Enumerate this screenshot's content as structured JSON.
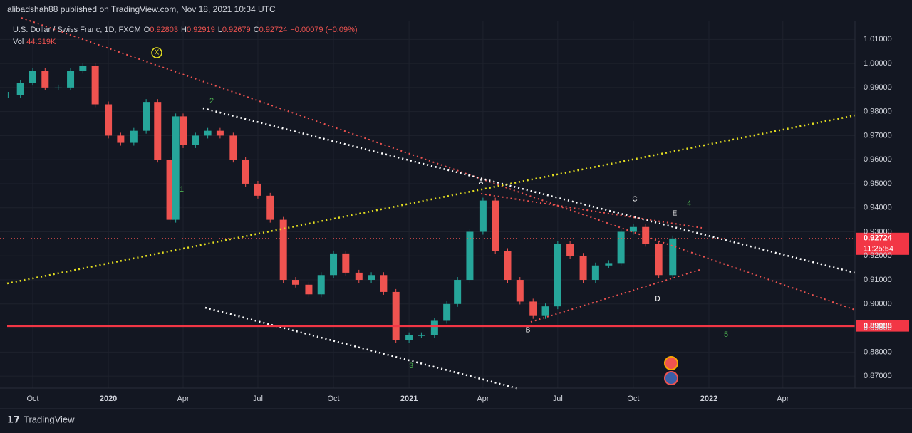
{
  "header": {
    "publisher": "alibadshah88 published on TradingView.com, Nov 18, 2021 10:34 UTC"
  },
  "legend": {
    "symbol": "U.S. Dollar / Swiss Franc, 1D, FXCM",
    "o_key": "O",
    "o": "0.92803",
    "h_key": "H",
    "h": "0.92919",
    "l_key": "L",
    "l": "0.92679",
    "c_key": "C",
    "c": "0.92724",
    "change": "−0.00079 (−0.09%)",
    "vol_key": "Vol",
    "vol": "44.319K"
  },
  "chart_data": {
    "type": "candlestick",
    "x": [
      "2019-09-01",
      "2019-09-16",
      "2019-10-01",
      "2019-10-16",
      "2019-11-01",
      "2019-11-16",
      "2019-12-01",
      "2019-12-16",
      "2020-01-01",
      "2020-01-16",
      "2020-02-01",
      "2020-02-16",
      "2020-03-01",
      "2020-03-16",
      "2020-03-23",
      "2020-04-01",
      "2020-04-16",
      "2020-05-01",
      "2020-05-16",
      "2020-06-01",
      "2020-06-16",
      "2020-07-01",
      "2020-07-16",
      "2020-08-01",
      "2020-08-16",
      "2020-09-01",
      "2020-09-16",
      "2020-10-01",
      "2020-10-16",
      "2020-11-01",
      "2020-11-16",
      "2020-12-01",
      "2020-12-16",
      "2021-01-01",
      "2021-01-16",
      "2021-02-01",
      "2021-02-16",
      "2021-03-01",
      "2021-03-16",
      "2021-04-01",
      "2021-04-16",
      "2021-05-01",
      "2021-05-16",
      "2021-06-01",
      "2021-06-16",
      "2021-07-01",
      "2021-07-16",
      "2021-08-01",
      "2021-08-16",
      "2021-09-01",
      "2021-09-16",
      "2021-10-01",
      "2021-10-16",
      "2021-11-01",
      "2021-11-18"
    ],
    "series": [
      {
        "name": "USDCHF",
        "values": [
          0.987,
          0.992,
          0.997,
          0.99,
          0.99,
          0.997,
          0.999,
          0.983,
          0.97,
          0.967,
          0.972,
          0.984,
          0.96,
          0.935,
          0.978,
          0.966,
          0.97,
          0.972,
          0.97,
          0.96,
          0.95,
          0.945,
          0.935,
          0.91,
          0.908,
          0.904,
          0.912,
          0.921,
          0.913,
          0.91,
          0.912,
          0.905,
          0.885,
          0.887,
          0.887,
          0.893,
          0.9,
          0.91,
          0.93,
          0.943,
          0.922,
          0.91,
          0.901,
          0.895,
          0.899,
          0.925,
          0.92,
          0.91,
          0.916,
          0.917,
          0.93,
          0.932,
          0.925,
          0.912,
          0.92724
        ]
      }
    ],
    "up_color": "#26a69a",
    "down_color": "#ef5350",
    "ylim": [
      0.865,
      1.0175
    ],
    "yticks": [
      {
        "value": 1.01,
        "label": "1.01000"
      },
      {
        "value": 1.0,
        "label": "1.00000"
      },
      {
        "value": 0.99,
        "label": "0.99000"
      },
      {
        "value": 0.98,
        "label": "0.98000"
      },
      {
        "value": 0.97,
        "label": "0.97000"
      },
      {
        "value": 0.96,
        "label": "0.96000"
      },
      {
        "value": 0.95,
        "label": "0.95000"
      },
      {
        "value": 0.94,
        "label": "0.94000"
      },
      {
        "value": 0.93,
        "label": "0.93000"
      },
      {
        "value": 0.92,
        "label": "0.92000"
      },
      {
        "value": 0.91,
        "label": "0.91000"
      },
      {
        "value": 0.9,
        "label": "0.90000"
      },
      {
        "value": 0.89,
        "label": "0.89000"
      },
      {
        "value": 0.88,
        "label": "0.88000"
      },
      {
        "value": 0.87,
        "label": "0.87000"
      }
    ],
    "xticks": [
      {
        "value": "2019-10-01",
        "label": "Oct"
      },
      {
        "value": "2020-01-01",
        "label": "2020"
      },
      {
        "value": "2020-04-01",
        "label": "Apr"
      },
      {
        "value": "2020-07-01",
        "label": "Jul"
      },
      {
        "value": "2020-10-01",
        "label": "Oct"
      },
      {
        "value": "2021-01-01",
        "label": "2021"
      },
      {
        "value": "2021-04-01",
        "label": "Apr"
      },
      {
        "value": "2021-07-01",
        "label": "Jul"
      },
      {
        "value": "2021-10-01",
        "label": "Oct"
      },
      {
        "value": "2022-01-01",
        "label": "2022"
      },
      {
        "value": "2022-04-01",
        "label": "Apr"
      }
    ],
    "support": {
      "value": 0.89088,
      "label": "0.89088"
    },
    "last_price": {
      "value": 0.92724,
      "label": "0.92724",
      "countdown": "11:25:54"
    },
    "grid": true
  },
  "waves": {
    "x": "X",
    "w1": "1",
    "w2": "2",
    "w3": "3",
    "a": "A",
    "b": "B",
    "c": "C",
    "d": "D",
    "e": "E",
    "w4": "4",
    "w5": "5"
  },
  "footer": {
    "brand": "TradingView"
  }
}
